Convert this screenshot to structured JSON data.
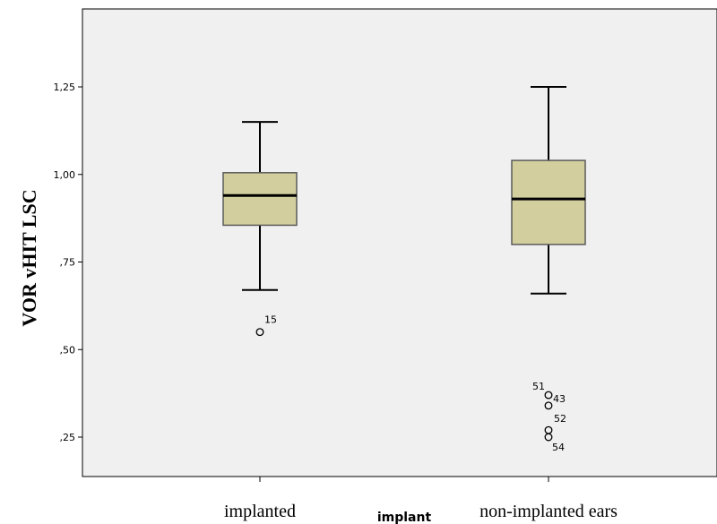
{
  "chart_data": {
    "type": "boxplot",
    "xlabel": "implant",
    "ylabel": "VOR vHIT LSC",
    "ylim": [
      0.2,
      1.45
    ],
    "yticks": [
      {
        "value": 0.25,
        "label": ",25"
      },
      {
        "value": 0.5,
        "label": ",50"
      },
      {
        "value": 0.75,
        "label": ",75"
      },
      {
        "value": 1.0,
        "label": "1,00"
      },
      {
        "value": 1.25,
        "label": "1,25"
      }
    ],
    "categories": [
      "implanted",
      "non-implanted ears"
    ],
    "boxes": [
      {
        "category": "implanted",
        "whisker_low": 0.67,
        "q1": 0.855,
        "median": 0.94,
        "q3": 1.005,
        "whisker_high": 1.15,
        "outliers": [
          {
            "id": "15",
            "value": 0.55
          }
        ]
      },
      {
        "category": "non-implanted ears",
        "whisker_low": 0.66,
        "q1": 0.8,
        "median": 0.93,
        "q3": 1.04,
        "whisker_high": 1.25,
        "outliers": [
          {
            "id": "51",
            "value": 0.37
          },
          {
            "id": "43",
            "value": 0.34
          },
          {
            "id": "52",
            "value": 0.27
          },
          {
            "id": "54",
            "value": 0.25
          }
        ]
      }
    ],
    "grid": false,
    "colors": {
      "plot_background": "#f0f0f0",
      "box_fill": "#d3ce9d",
      "box_stroke": "#5a5a5a",
      "median": "#000000"
    }
  }
}
